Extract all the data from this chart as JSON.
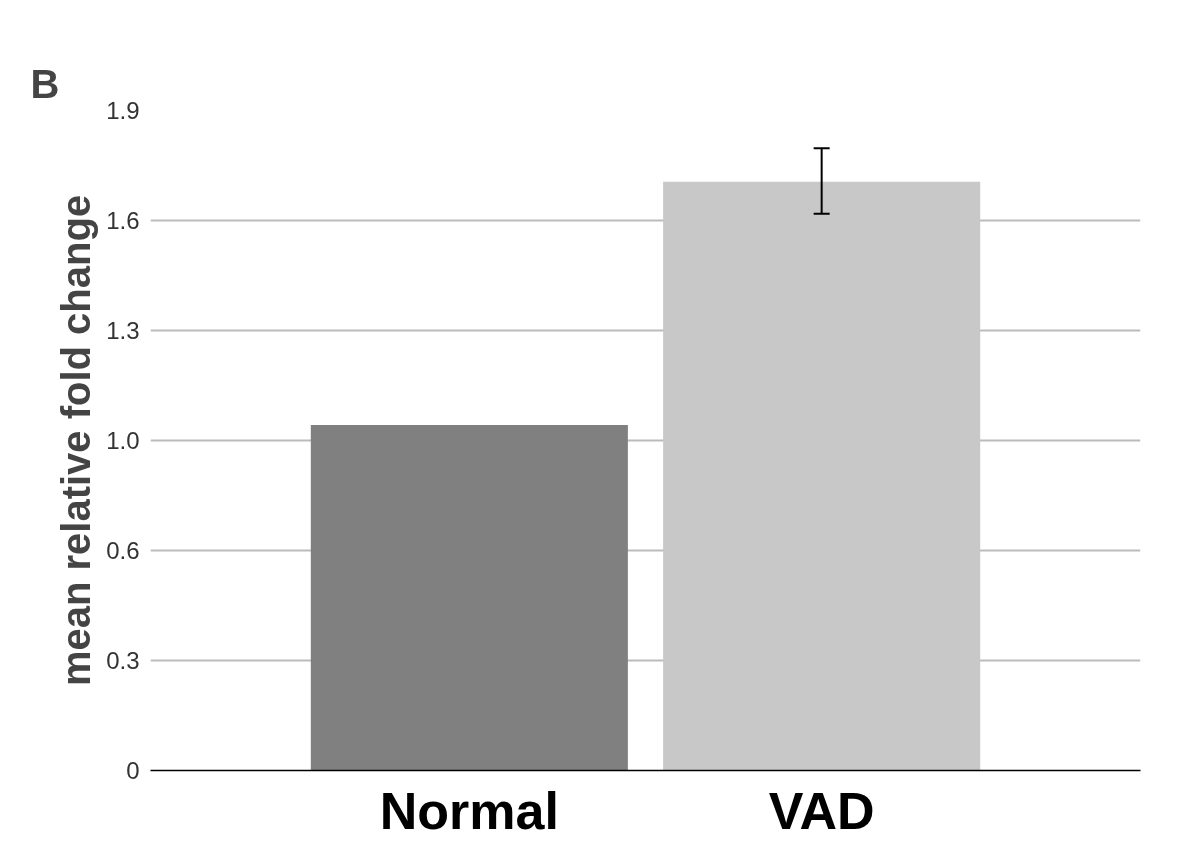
{
  "chart_data": {
    "type": "bar",
    "title": "B",
    "ylabel": "mean relative fold change",
    "categories": [
      "Normal",
      "VAD"
    ],
    "values": [
      1.005,
      1.713
    ],
    "colors": [
      "#808080",
      "#c8c8c8"
    ],
    "errors": [
      null,
      [
        1.62,
        1.81
      ]
    ],
    "ylim": [
      0,
      1.92
    ],
    "yticks": [
      {
        "value": 0,
        "label": "0"
      },
      {
        "value": 0.32,
        "label": "0.3"
      },
      {
        "value": 0.64,
        "label": "0.6"
      },
      {
        "value": 0.96,
        "label": "1.0"
      },
      {
        "value": 1.28,
        "label": "1.3"
      },
      {
        "value": 1.6,
        "label": "1.6"
      },
      {
        "value": 1.92,
        "label": "1.9"
      }
    ],
    "grid": "y"
  }
}
